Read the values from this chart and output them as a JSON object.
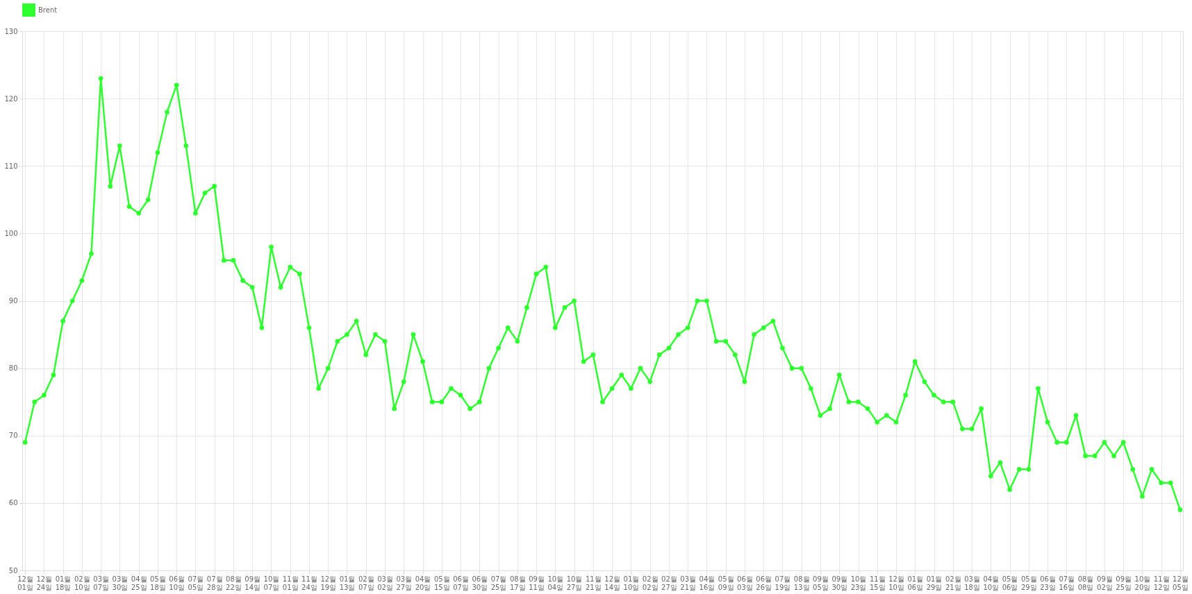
{
  "chart_data": {
    "type": "line",
    "categories": [
      "12월 01일",
      null,
      "12월 24일",
      null,
      "01월 18일",
      null,
      "02월 10일",
      null,
      "03월 07일",
      null,
      "03월 30일",
      null,
      "04월 25일",
      null,
      "05월 18일",
      null,
      "06월 10일",
      null,
      "07월 05일",
      null,
      "07월 28일",
      null,
      "08월 22일",
      null,
      "09월 14일",
      null,
      "10월 07일",
      null,
      "11월 01일",
      null,
      "11월 24일",
      null,
      "12월 19일",
      null,
      "01월 13일",
      null,
      "02월 07일",
      null,
      "03월 02일",
      null,
      "03월 27일",
      null,
      "04월 20일",
      null,
      "05월 15일",
      null,
      "06월 07일",
      null,
      "06월 30일",
      null,
      "07월 25일",
      null,
      "08월 17일",
      null,
      "09월 11일",
      null,
      "10월 04일",
      null,
      "10월 27일",
      null,
      "11월 21일",
      null,
      "12월 14일",
      null,
      "01월 10일",
      null,
      "02월 02일",
      null,
      "02월 27일",
      null,
      "03월 21일",
      null,
      "04월 16일",
      null,
      "05월 09일",
      null,
      "06월 03일",
      null,
      "06월 26일",
      null,
      "07월 19일",
      null,
      "08월 13일",
      null,
      "09월 05일",
      null,
      "09월 30일",
      null,
      "10월 23일",
      null,
      "11월 15일",
      null,
      "12월 10일",
      null,
      "01월 06일",
      null,
      "01월 29일",
      null,
      "02월 21일",
      null,
      "03월 18일",
      null,
      "04월 10일",
      null,
      "05월 06일",
      null,
      "05월 29일",
      null,
      "06월 23일",
      null,
      "07월 16일",
      null,
      "08월 08일",
      null,
      "09월 02일",
      null,
      "09월 25일",
      null,
      "10월 20일",
      null,
      "11월 12일",
      null,
      "12월 05일"
    ],
    "series": [
      {
        "name": "Brent",
        "color": "#2eff2e",
        "values": [
          69,
          75,
          76,
          79,
          87,
          90,
          93,
          97,
          123,
          107,
          113,
          104,
          103,
          105,
          112,
          118,
          122,
          113,
          103,
          106,
          107,
          96,
          96,
          93,
          92,
          86,
          98,
          92,
          95,
          94,
          86,
          77,
          80,
          84,
          85,
          87,
          82,
          85,
          84,
          74,
          78,
          85,
          81,
          75,
          75,
          77,
          76,
          74,
          75,
          80,
          83,
          86,
          84,
          89,
          94,
          95,
          86,
          89,
          90,
          81,
          82,
          75,
          77,
          79,
          77,
          80,
          78,
          82,
          83,
          85,
          86,
          90,
          90,
          84,
          84,
          82,
          78,
          85,
          86,
          87,
          83,
          80,
          80,
          77,
          73,
          74,
          79,
          75,
          75,
          74,
          72,
          73,
          72,
          76,
          81,
          78,
          76,
          75,
          75,
          71,
          71,
          74,
          64,
          66,
          62,
          65,
          65,
          77,
          72,
          69,
          69,
          73,
          67,
          67,
          69,
          67,
          69,
          65,
          61,
          65,
          63,
          63,
          59
        ]
      }
    ],
    "ylim": [
      50,
      130
    ],
    "yticks": [
      50,
      60,
      70,
      80,
      90,
      100,
      110,
      120,
      130
    ],
    "grid": true,
    "legend": "top",
    "marker": "circle",
    "line_style": "solid"
  }
}
